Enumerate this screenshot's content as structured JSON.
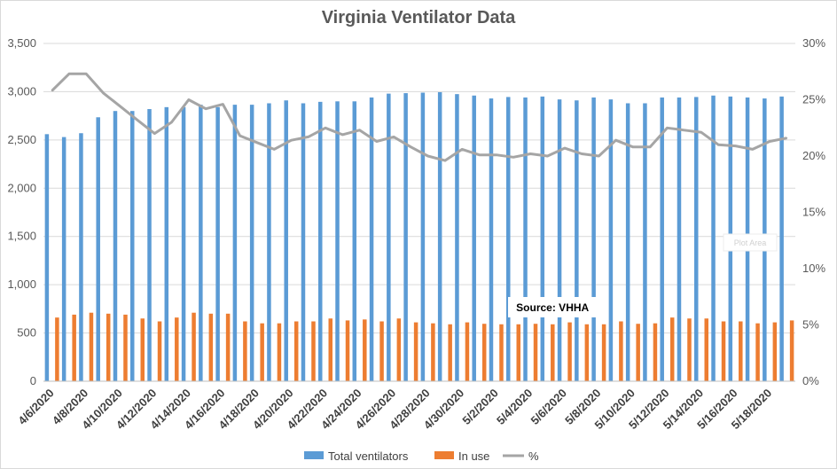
{
  "chart_data": {
    "type": "bar",
    "title": "Virginia Ventilator Data",
    "xlabel": "",
    "ylabel": "",
    "y2label": "",
    "categories": [
      "4/6/2020",
      "4/7/2020",
      "4/8/2020",
      "4/9/2020",
      "4/10/2020",
      "4/11/2020",
      "4/12/2020",
      "4/13/2020",
      "4/14/2020",
      "4/15/2020",
      "4/16/2020",
      "4/17/2020",
      "4/18/2020",
      "4/19/2020",
      "4/20/2020",
      "4/21/2020",
      "4/22/2020",
      "4/23/2020",
      "4/24/2020",
      "4/25/2020",
      "4/26/2020",
      "4/27/2020",
      "4/28/2020",
      "4/29/2020",
      "4/30/2020",
      "5/1/2020",
      "5/2/2020",
      "5/3/2020",
      "5/4/2020",
      "5/5/2020",
      "5/6/2020",
      "5/7/2020",
      "5/8/2020",
      "5/9/2020",
      "5/10/2020",
      "5/11/2020",
      "5/12/2020",
      "5/13/2020",
      "5/14/2020",
      "5/15/2020",
      "5/16/2020",
      "5/17/2020",
      "5/18/2020",
      "5/19/2020"
    ],
    "x_tick_labels": [
      "4/6/2020",
      "4/8/2020",
      "4/10/2020",
      "4/12/2020",
      "4/14/2020",
      "4/16/2020",
      "4/18/2020",
      "4/20/2020",
      "4/22/2020",
      "4/24/2020",
      "4/26/2020",
      "4/28/2020",
      "4/30/2020",
      "5/2/2020",
      "5/4/2020",
      "5/6/2020",
      "5/8/2020",
      "5/10/2020",
      "5/12/2020",
      "5/14/2020",
      "5/16/2020",
      "5/18/2020"
    ],
    "series": [
      {
        "name": "Total ventilators",
        "kind": "bar",
        "axis": "left",
        "color": "#5b9bd5",
        "values": [
          2560,
          2530,
          2570,
          2735,
          2800,
          2800,
          2820,
          2840,
          2840,
          2865,
          2840,
          2865,
          2865,
          2880,
          2910,
          2880,
          2895,
          2900,
          2900,
          2940,
          2980,
          2985,
          2990,
          2995,
          2975,
          2960,
          2930,
          2945,
          2940,
          2950,
          2920,
          2910,
          2940,
          2920,
          2880,
          2880,
          2940,
          2940,
          2945,
          2960,
          2950,
          2940,
          2930,
          2950
        ]
      },
      {
        "name": "In use",
        "kind": "bar",
        "axis": "left",
        "color": "#ed7d31",
        "values": [
          660,
          690,
          710,
          700,
          690,
          650,
          620,
          660,
          710,
          700,
          700,
          620,
          600,
          600,
          620,
          620,
          650,
          630,
          640,
          620,
          650,
          610,
          600,
          590,
          610,
          595,
          590,
          590,
          595,
          590,
          610,
          590,
          590,
          620,
          595,
          600,
          660,
          650,
          650,
          620,
          620,
          600,
          610,
          630
        ]
      },
      {
        "name": "%",
        "kind": "line",
        "axis": "right",
        "color": "#a5a5a5",
        "values": [
          25.8,
          27.3,
          27.3,
          25.6,
          24.4,
          23.2,
          22.0,
          23.0,
          25.0,
          24.2,
          24.6,
          21.8,
          21.2,
          20.6,
          21.4,
          21.7,
          22.5,
          21.9,
          22.3,
          21.3,
          21.7,
          20.8,
          20.0,
          19.6,
          20.6,
          20.1,
          20.1,
          19.9,
          20.2,
          20.0,
          20.7,
          20.2,
          20.0,
          21.4,
          20.8,
          20.8,
          22.5,
          22.3,
          22.1,
          21.0,
          20.9,
          20.6,
          21.3,
          21.6
        ]
      }
    ],
    "ylim": [
      0,
      3500
    ],
    "y_ticks": [
      "0",
      "500",
      "1,000",
      "1,500",
      "2,000",
      "2,500",
      "3,000",
      "3,500"
    ],
    "y2lim": [
      0,
      30
    ],
    "y2_ticks": [
      "0%",
      "5%",
      "10%",
      "15%",
      "20%",
      "25%",
      "30%"
    ],
    "grid": true,
    "legend": "bottom",
    "annotation": "Source: VHHA",
    "plot_area_label": "Plot Area",
    "colors": {
      "grid": "#d9d9d9",
      "axis_text": "#595959",
      "title": "#595959"
    }
  }
}
